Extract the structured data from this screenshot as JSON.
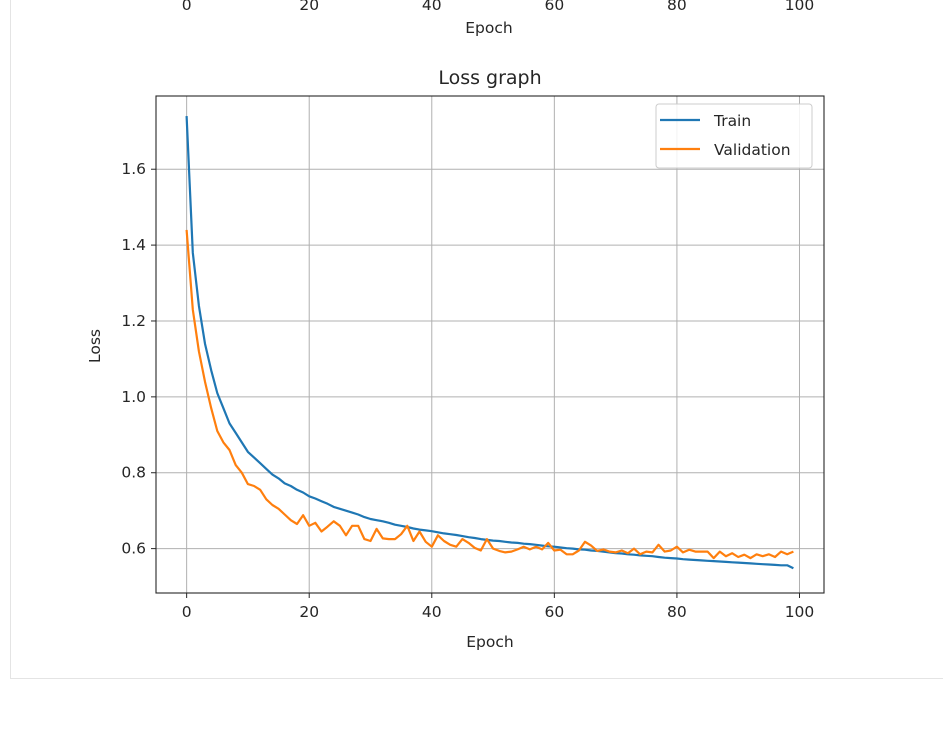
{
  "previous_chart": {
    "xtick_labels": [
      "0",
      "20",
      "40",
      "60",
      "80",
      "100"
    ],
    "xlabel": "Epoch"
  },
  "chart_data": {
    "type": "line",
    "title": "Loss graph",
    "xlabel": "Epoch",
    "ylabel": "Loss",
    "xlim": [
      -5,
      104
    ],
    "ylim": [
      0.483,
      1.793
    ],
    "xticks": [
      0,
      20,
      40,
      60,
      80,
      100
    ],
    "yticks": [
      0.6,
      0.8,
      1.0,
      1.2,
      1.4,
      1.6
    ],
    "xtick_labels": [
      "0",
      "20",
      "40",
      "60",
      "80",
      "100"
    ],
    "ytick_labels": [
      "0.6",
      "0.8",
      "1.0",
      "1.2",
      "1.4",
      "1.6"
    ],
    "grid": true,
    "legend_position": "top-right",
    "series": [
      {
        "name": "Train",
        "color": "#1f77b4",
        "x": [
          0,
          1,
          2,
          3,
          4,
          5,
          6,
          7,
          8,
          9,
          10,
          11,
          12,
          13,
          14,
          15,
          16,
          17,
          18,
          19,
          20,
          21,
          22,
          23,
          24,
          25,
          26,
          27,
          28,
          29,
          30,
          31,
          32,
          33,
          34,
          35,
          36,
          37,
          38,
          39,
          40,
          41,
          42,
          43,
          44,
          45,
          46,
          47,
          48,
          49,
          50,
          51,
          52,
          53,
          54,
          55,
          56,
          57,
          58,
          59,
          60,
          61,
          62,
          63,
          64,
          65,
          66,
          67,
          68,
          69,
          70,
          71,
          72,
          73,
          74,
          75,
          76,
          77,
          78,
          79,
          80,
          81,
          82,
          83,
          84,
          85,
          86,
          87,
          88,
          89,
          90,
          91,
          92,
          93,
          94,
          95,
          96,
          97,
          98,
          99
        ],
        "values": [
          1.74,
          1.38,
          1.24,
          1.14,
          1.07,
          1.01,
          0.97,
          0.93,
          0.905,
          0.88,
          0.855,
          0.84,
          0.825,
          0.81,
          0.795,
          0.785,
          0.772,
          0.765,
          0.755,
          0.748,
          0.738,
          0.732,
          0.725,
          0.718,
          0.71,
          0.705,
          0.7,
          0.695,
          0.69,
          0.683,
          0.678,
          0.675,
          0.672,
          0.668,
          0.663,
          0.66,
          0.657,
          0.653,
          0.65,
          0.648,
          0.646,
          0.643,
          0.64,
          0.638,
          0.636,
          0.633,
          0.63,
          0.628,
          0.625,
          0.623,
          0.621,
          0.62,
          0.618,
          0.616,
          0.615,
          0.613,
          0.612,
          0.61,
          0.608,
          0.606,
          0.605,
          0.603,
          0.601,
          0.6,
          0.598,
          0.597,
          0.595,
          0.594,
          0.592,
          0.59,
          0.588,
          0.587,
          0.585,
          0.584,
          0.582,
          0.581,
          0.58,
          0.578,
          0.576,
          0.575,
          0.574,
          0.572,
          0.571,
          0.57,
          0.569,
          0.568,
          0.567,
          0.566,
          0.565,
          0.564,
          0.563,
          0.562,
          0.561,
          0.56,
          0.559,
          0.558,
          0.557,
          0.556,
          0.556,
          0.548
        ]
      },
      {
        "name": "Validation",
        "color": "#ff7f0e",
        "x": [
          0,
          1,
          2,
          3,
          4,
          5,
          6,
          7,
          8,
          9,
          10,
          11,
          12,
          13,
          14,
          15,
          16,
          17,
          18,
          19,
          20,
          21,
          22,
          23,
          24,
          25,
          26,
          27,
          28,
          29,
          30,
          31,
          32,
          33,
          34,
          35,
          36,
          37,
          38,
          39,
          40,
          41,
          42,
          43,
          44,
          45,
          46,
          47,
          48,
          49,
          50,
          51,
          52,
          53,
          54,
          55,
          56,
          57,
          58,
          59,
          60,
          61,
          62,
          63,
          64,
          65,
          66,
          67,
          68,
          69,
          70,
          71,
          72,
          73,
          74,
          75,
          76,
          77,
          78,
          79,
          80,
          81,
          82,
          83,
          84,
          85,
          86,
          87,
          88,
          89,
          90,
          91,
          92,
          93,
          94,
          95,
          96,
          97,
          98,
          99
        ],
        "values": [
          1.44,
          1.23,
          1.12,
          1.04,
          0.97,
          0.91,
          0.88,
          0.86,
          0.82,
          0.8,
          0.77,
          0.765,
          0.755,
          0.73,
          0.715,
          0.705,
          0.69,
          0.675,
          0.665,
          0.688,
          0.66,
          0.668,
          0.645,
          0.658,
          0.672,
          0.66,
          0.635,
          0.66,
          0.66,
          0.625,
          0.62,
          0.652,
          0.627,
          0.625,
          0.625,
          0.638,
          0.66,
          0.62,
          0.645,
          0.618,
          0.605,
          0.635,
          0.62,
          0.61,
          0.605,
          0.625,
          0.615,
          0.602,
          0.595,
          0.625,
          0.6,
          0.594,
          0.59,
          0.592,
          0.598,
          0.605,
          0.598,
          0.605,
          0.598,
          0.615,
          0.595,
          0.597,
          0.585,
          0.585,
          0.595,
          0.618,
          0.608,
          0.594,
          0.598,
          0.592,
          0.59,
          0.595,
          0.588,
          0.6,
          0.585,
          0.592,
          0.59,
          0.61,
          0.592,
          0.595,
          0.605,
          0.59,
          0.597,
          0.592,
          0.592,
          0.592,
          0.575,
          0.592,
          0.58,
          0.588,
          0.578,
          0.584,
          0.575,
          0.585,
          0.58,
          0.585,
          0.578,
          0.592,
          0.585,
          0.592
        ]
      }
    ]
  }
}
